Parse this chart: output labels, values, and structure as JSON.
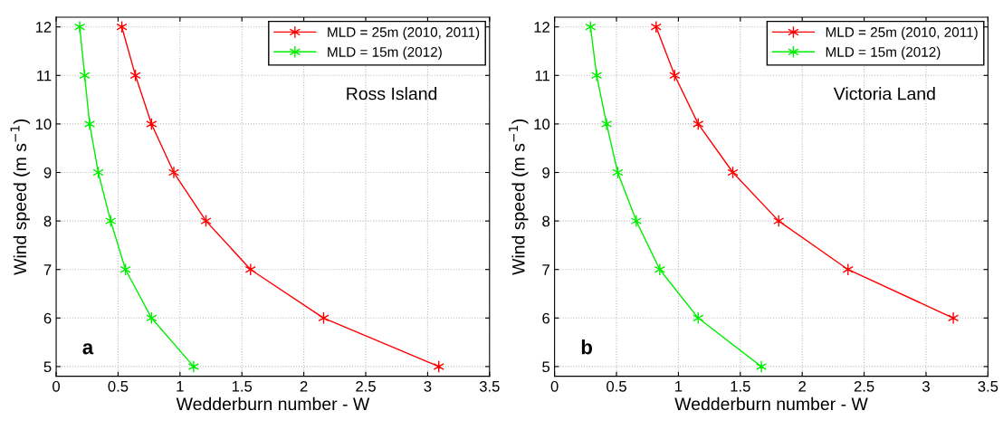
{
  "chart_data": [
    {
      "type": "line",
      "xlabel": "Wedderburn number - W",
      "ylabel": "Wind speed (m s$^{−1}$)",
      "annotations": [
        "Ross Island",
        "a"
      ],
      "xlim": [
        0,
        3.5
      ],
      "xticks": [
        0,
        0.5,
        1,
        1.5,
        2,
        2.5,
        3,
        3.5
      ],
      "ylim": [
        4.8,
        12.2
      ],
      "yticks": [
        5,
        6,
        7,
        8,
        9,
        10,
        11,
        12
      ],
      "grid": true,
      "legend": "top right",
      "marker": "cross",
      "line_style": "solid",
      "series": [
        {
          "name": "MLD = 25m (2010, 2011)",
          "color": "#ff0000",
          "x": [
            3.09,
            2.16,
            1.57,
            1.21,
            0.95,
            0.77,
            0.64,
            0.53
          ],
          "values": [
            5,
            6,
            7,
            8,
            9,
            10,
            11,
            12
          ]
        },
        {
          "name": "MLD = 15m (2012)",
          "color": "#00ee00",
          "x": [
            1.11,
            0.77,
            0.56,
            0.44,
            0.34,
            0.27,
            0.23,
            0.19
          ],
          "values": [
            5,
            6,
            7,
            8,
            9,
            10,
            11,
            12
          ]
        }
      ]
    },
    {
      "type": "line",
      "xlabel": "Wedderburn number - W",
      "ylabel": "Wind speed (m s$^{−1}$)",
      "annotations": [
        "Victoria Land",
        "b"
      ],
      "xlim": [
        0,
        3.5
      ],
      "xticks": [
        0,
        0.5,
        1,
        1.5,
        2,
        2.5,
        3,
        3.5
      ],
      "ylim": [
        4.8,
        12.2
      ],
      "yticks": [
        5,
        6,
        7,
        8,
        9,
        10,
        11,
        12
      ],
      "grid": true,
      "legend": "top right",
      "marker": "cross",
      "line_style": "solid",
      "series": [
        {
          "name": "MLD = 25m (2010, 2011)",
          "color": "#ff0000",
          "x": [
            3.22,
            2.37,
            1.81,
            1.44,
            1.16,
            0.97,
            0.82
          ],
          "values": [
            6,
            7,
            8,
            9,
            10,
            11,
            12
          ]
        },
        {
          "name": "MLD = 15m (2012)",
          "color": "#00ee00",
          "x": [
            1.67,
            1.16,
            0.85,
            0.66,
            0.51,
            0.42,
            0.34,
            0.29
          ],
          "values": [
            5,
            6,
            7,
            8,
            9,
            10,
            11,
            12
          ]
        }
      ]
    }
  ]
}
